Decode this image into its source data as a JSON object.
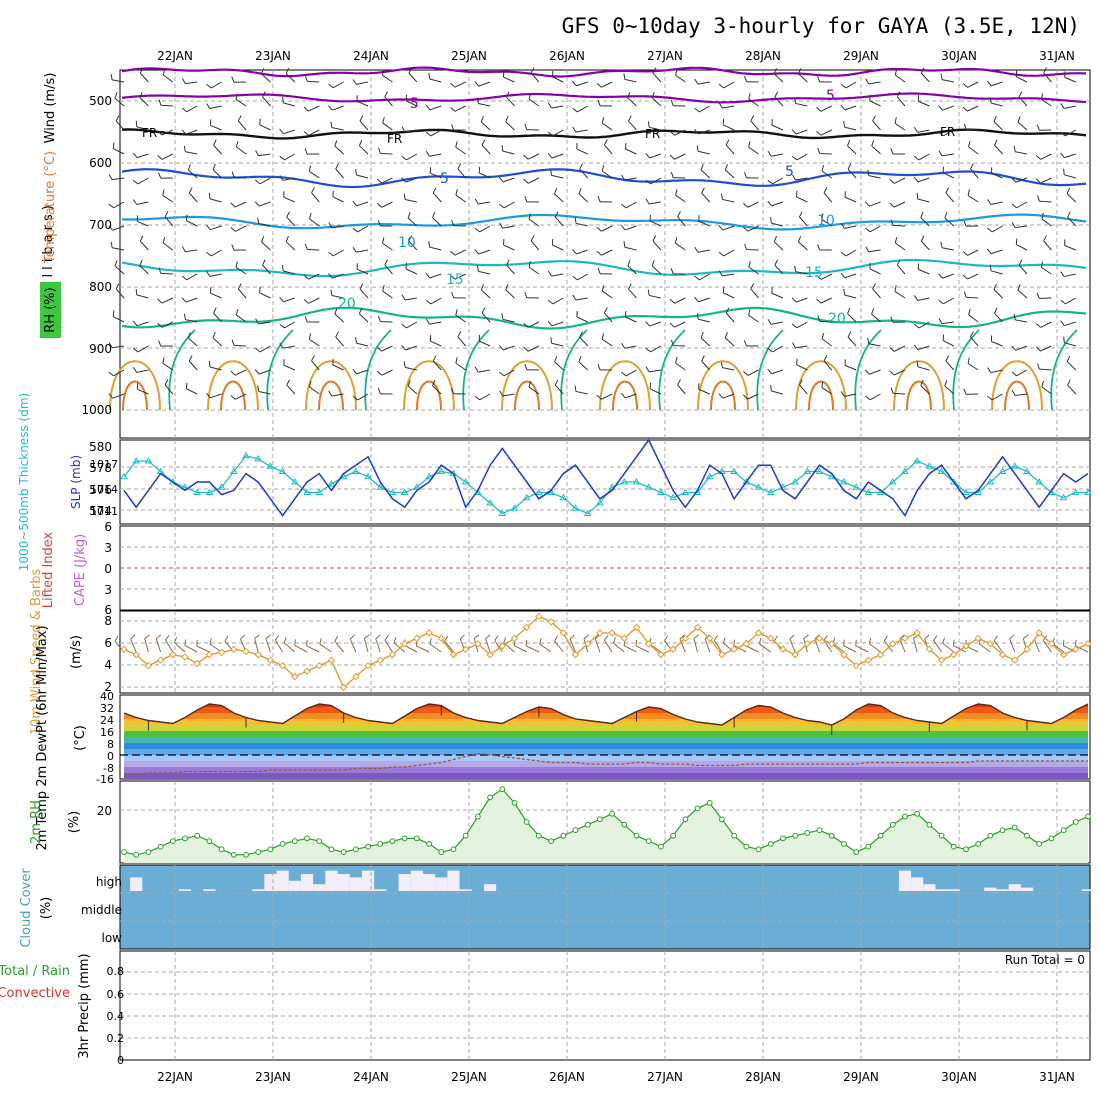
{
  "title": "GFS 0~10day 3-hourly for GAYA (3.5E, 12N)",
  "dates": [
    "22JAN",
    "23JAN",
    "24JAN",
    "25JAN",
    "26JAN",
    "27JAN",
    "28JAN",
    "29JAN",
    "30JAN",
    "31JAN"
  ],
  "colors": {
    "purple": "#8800aa",
    "black": "#111111",
    "blue": "#1c4fd6",
    "lightblue": "#1a9ae0",
    "cyan": "#1cb8c8",
    "green": "#14b48c",
    "orange": "#e0a030",
    "slp": "#1c3ad0",
    "thick": "#20c0c8",
    "wind10": "#e89a30",
    "rh": "#2aa02a",
    "cloud": "#6aaed6",
    "grid": "#aaaaaa"
  },
  "chart_data": [
    {
      "panel": "upper_air",
      "type": "line",
      "labels": {
        "wind": "Wind (m/s)",
        "temperature": "Temperature (°C)",
        "rh": "RH (%)",
        "yaxis": "(millibars)"
      },
      "y_ticks": [
        "500",
        "600",
        "700",
        "800",
        "900",
        "1000"
      ],
      "ylim": [
        450,
        1050
      ],
      "contour_labels": [
        "5",
        "FR",
        "5",
        "10",
        "15",
        "20"
      ]
    },
    {
      "panel": "slp_thickness",
      "type": "line",
      "ylabel_left": "1000~500mb Thickness (dm)",
      "ylabel_right": "SLP (mb)",
      "left_ticks": [
        "580",
        "578",
        "576",
        "574"
      ],
      "right_ticks": [
        "1017",
        "1014",
        "1011"
      ],
      "thickness_ylim": [
        573,
        581
      ],
      "slp_ylim": [
        1009,
        1019
      ],
      "x": [
        0,
        1,
        2,
        3,
        4,
        5,
        6,
        7,
        8,
        9,
        10,
        11,
        12,
        13,
        14,
        15,
        16,
        17,
        18,
        19,
        20,
        21,
        22,
        23,
        24,
        25,
        26,
        27,
        28,
        29,
        30,
        31,
        32,
        33,
        34,
        35,
        36,
        37,
        38,
        39,
        40,
        41,
        42,
        43,
        44,
        45,
        46,
        47,
        48,
        49,
        50,
        51,
        52,
        53,
        54,
        55,
        56,
        57,
        58,
        59,
        60,
        61,
        62,
        63,
        64,
        65,
        66,
        67,
        68,
        69,
        70,
        71,
        72,
        73,
        74,
        75,
        76,
        77,
        78,
        79
      ],
      "series": [
        {
          "key": "thickness",
          "values": [
            577.5,
            579,
            579,
            578,
            577,
            576.5,
            576,
            576,
            576.5,
            578,
            579.5,
            579.2,
            578.5,
            578,
            577,
            576,
            576,
            576.8,
            577.5,
            578,
            577.5,
            576.5,
            576,
            576,
            576.5,
            577.5,
            578,
            577.8,
            577,
            576,
            575,
            574,
            574.5,
            575.5,
            576,
            576,
            575.5,
            574.5,
            574,
            575,
            576.5,
            577,
            577,
            576.5,
            576,
            575.5,
            576,
            576,
            577.5,
            578,
            578,
            577,
            576.5,
            576,
            576.5,
            577,
            578,
            578,
            577.5,
            577,
            576.5,
            576,
            576,
            577,
            578,
            579,
            578.5,
            578,
            577,
            576,
            576,
            577,
            578,
            578.5,
            578,
            577,
            576,
            575.5,
            576,
            576
          ]
        },
        {
          "key": "slp",
          "values": [
            1013,
            1011,
            1013,
            1015,
            1014,
            1013,
            1014,
            1014,
            1012.5,
            1013,
            1015,
            1014,
            1012,
            1010,
            1012,
            1014,
            1015,
            1013,
            1015,
            1016,
            1017,
            1014,
            1012,
            1011,
            1013,
            1014,
            1016,
            1015,
            1011,
            1013,
            1016,
            1018,
            1016,
            1014,
            1012,
            1013,
            1015,
            1016,
            1014,
            1012,
            1013,
            1015,
            1017,
            1019,
            1016,
            1013,
            1011,
            1013,
            1016,
            1015,
            1012,
            1014,
            1016,
            1016,
            1013,
            1012,
            1014,
            1016,
            1015,
            1013,
            1012,
            1014,
            1013,
            1012,
            1010,
            1013,
            1015,
            1016,
            1014,
            1012,
            1013,
            1015,
            1017,
            1015,
            1013,
            1011,
            1013,
            1015,
            1014,
            1015
          ]
        }
      ]
    },
    {
      "panel": "stability",
      "type": "line",
      "ylabel_left": "Lifted Index",
      "ylabel_right": "CAPE (J/kg)",
      "y_ticks": [
        "6",
        "3",
        "0",
        "3",
        "6"
      ],
      "ylim": [
        -6,
        6
      ],
      "lifted_index_zero": 0
    },
    {
      "panel": "wind10m",
      "type": "line",
      "ylabel": "10m Wind Speed & Barbs",
      "yunit": "(m/s)",
      "y_ticks": [
        "8",
        "6",
        "4",
        "2"
      ],
      "ylim": [
        1.5,
        9
      ],
      "x": [
        0,
        1,
        2,
        3,
        4,
        5,
        6,
        7,
        8,
        9,
        10,
        11,
        12,
        13,
        14,
        15,
        16,
        17,
        18,
        19,
        20,
        21,
        22,
        23,
        24,
        25,
        26,
        27,
        28,
        29,
        30,
        31,
        32,
        33,
        34,
        35,
        36,
        37,
        38,
        39,
        40,
        41,
        42,
        43,
        44,
        45,
        46,
        47,
        48,
        49,
        50,
        51,
        52,
        53,
        54,
        55,
        56,
        57,
        58,
        59,
        60,
        61,
        62,
        63,
        64,
        65,
        66,
        67,
        68,
        69,
        70,
        71,
        72,
        73,
        74,
        75,
        76,
        77,
        78,
        79
      ],
      "values": [
        5.5,
        5,
        4,
        4.5,
        5,
        4.8,
        4.2,
        5,
        5.2,
        5.5,
        5.3,
        5,
        4.5,
        4,
        3,
        3.5,
        4,
        4.5,
        2,
        3,
        4,
        4.5,
        5,
        6,
        6.5,
        7,
        6.5,
        5,
        5.5,
        6,
        5,
        5.8,
        6.5,
        7.5,
        8.5,
        8,
        7,
        5,
        6,
        7,
        7,
        6.5,
        7.5,
        6,
        5,
        5.5,
        6.5,
        7.5,
        6.5,
        5,
        5.5,
        6,
        7,
        6.5,
        5.5,
        5,
        6,
        6.5,
        6,
        5,
        4,
        4.5,
        5,
        6,
        6.5,
        7,
        5.5,
        4.5,
        5,
        5.8,
        6.5,
        6,
        5,
        4.5,
        5.5,
        7,
        6,
        5,
        5.5,
        6
      ]
    },
    {
      "panel": "temp2m",
      "type": "area",
      "ylabel": "2m Temp 2m DewPt (6hr Min/Max)",
      "yunit": "(°C)",
      "y_ticks": [
        "40",
        "32",
        "24",
        "16",
        "8",
        "0",
        "-8",
        "-16"
      ],
      "ylim": [
        -16,
        40
      ],
      "x": [
        0,
        1,
        2,
        3,
        4,
        5,
        6,
        7,
        8,
        9,
        10,
        11,
        12,
        13,
        14,
        15,
        16,
        17,
        18,
        19,
        20,
        21,
        22,
        23,
        24,
        25,
        26,
        27,
        28,
        29,
        30,
        31,
        32,
        33,
        34,
        35,
        36,
        37,
        38,
        39,
        40,
        41,
        42,
        43,
        44,
        45,
        46,
        47,
        48,
        49,
        50,
        51,
        52,
        53,
        54,
        55,
        56,
        57,
        58,
        59,
        60,
        61,
        62,
        63,
        64,
        65,
        66,
        67,
        68,
        69,
        70,
        71,
        72,
        73,
        74,
        75,
        76,
        77,
        78,
        79
      ],
      "series": [
        {
          "key": "temp",
          "values": [
            28,
            25,
            23,
            22,
            21,
            25,
            30,
            34,
            33,
            28,
            25,
            23,
            22,
            21,
            26,
            31,
            34,
            33,
            28,
            25,
            23,
            22,
            21,
            26,
            31,
            34,
            33,
            28,
            25,
            23,
            22,
            21,
            25,
            29,
            32,
            31,
            27,
            24,
            23,
            22,
            21,
            25,
            29,
            32,
            31,
            27,
            24,
            22,
            21,
            20,
            25,
            30,
            33,
            32,
            28,
            25,
            23,
            22,
            20,
            24,
            30,
            34,
            33,
            28,
            25,
            23,
            22,
            21,
            26,
            31,
            34,
            33,
            28,
            25,
            23,
            22,
            21,
            25,
            30,
            34
          ]
        },
        {
          "key": "dewpt",
          "values": [
            -13,
            -13,
            -12,
            -12,
            -12,
            -11,
            -11,
            -11,
            -11,
            -11,
            -11,
            -11,
            -10,
            -10,
            -10,
            -10,
            -10,
            -10,
            -10,
            -9,
            -9,
            -9,
            -8,
            -8,
            -7,
            -6,
            -5,
            -3,
            -1,
            1,
            0,
            -1,
            -2,
            -3,
            -4,
            -5,
            -5,
            -5,
            -6,
            -6,
            -6,
            -6,
            -5,
            -5,
            -6,
            -6,
            -6,
            -7,
            -7,
            -7,
            -7,
            -6,
            -6,
            -6,
            -6,
            -6,
            -6,
            -6,
            -6,
            -6,
            -6,
            -5,
            -5,
            -5,
            -5,
            -5,
            -5,
            -5,
            -5,
            -5,
            -4,
            -4,
            -4,
            -4,
            -4,
            -4,
            -4,
            -4,
            -4,
            -4
          ]
        }
      ]
    },
    {
      "panel": "rh2m",
      "type": "area",
      "ylabel": "2m RH",
      "yunit": "(%)",
      "y_ticks": [
        "20"
      ],
      "ylim": [
        0,
        30
      ],
      "x": [
        0,
        1,
        2,
        3,
        4,
        5,
        6,
        7,
        8,
        9,
        10,
        11,
        12,
        13,
        14,
        15,
        16,
        17,
        18,
        19,
        20,
        21,
        22,
        23,
        24,
        25,
        26,
        27,
        28,
        29,
        30,
        31,
        32,
        33,
        34,
        35,
        36,
        37,
        38,
        39,
        40,
        41,
        42,
        43,
        44,
        45,
        46,
        47,
        48,
        49,
        50,
        51,
        52,
        53,
        54,
        55,
        56,
        57,
        58,
        59,
        60,
        61,
        62,
        63,
        64,
        65,
        66,
        67,
        68,
        69,
        70,
        71,
        72,
        73,
        74,
        75,
        76,
        77,
        78,
        79
      ],
      "values": [
        4,
        3,
        4,
        6,
        8,
        9,
        10,
        8,
        5,
        3,
        3,
        4,
        5,
        7,
        8,
        9,
        8,
        5,
        4,
        5,
        6,
        7,
        8,
        9,
        9,
        7,
        4,
        5,
        10,
        17,
        24,
        27,
        22,
        15,
        10,
        8,
        10,
        12,
        14,
        16,
        18,
        14,
        10,
        8,
        6,
        10,
        16,
        20,
        22,
        16,
        10,
        6,
        5,
        7,
        9,
        10,
        11,
        12,
        10,
        7,
        4,
        6,
        10,
        14,
        17,
        18,
        14,
        10,
        6,
        5,
        7,
        10,
        12,
        13,
        10,
        7,
        9,
        12,
        15,
        17
      ]
    },
    {
      "panel": "cloud_cover",
      "type": "bar",
      "ylabel": "Cloud Cover",
      "yunit": "(%)",
      "levels": [
        "high",
        "middle",
        "low"
      ],
      "high_cover": [
        0,
        8,
        0,
        0,
        0,
        1,
        0,
        1,
        0,
        0,
        0,
        1,
        10,
        12,
        6,
        10,
        4,
        12,
        10,
        8,
        12,
        1,
        0,
        10,
        12,
        10,
        8,
        12,
        1,
        0,
        4,
        0,
        0,
        0,
        0,
        0,
        0,
        0,
        0,
        0,
        0,
        0,
        0,
        0,
        0,
        0,
        0,
        0,
        0,
        0,
        0,
        0,
        0,
        0,
        0,
        0,
        0,
        0,
        0,
        0,
        0,
        0,
        0,
        0,
        12,
        8,
        4,
        1,
        1,
        0,
        0,
        2,
        1,
        4,
        2,
        0,
        0,
        0,
        0,
        1
      ]
    },
    {
      "panel": "precip",
      "type": "bar",
      "ylabel_left": "3hr Precip (mm)",
      "ylabel_total": "Total / Rain",
      "ylabel_conv": "Convective",
      "y_ticks": [
        "0.8",
        "0.6",
        "0.4",
        "0.2",
        "0"
      ],
      "ylim": [
        0,
        0.9
      ],
      "run_total": "Run Total = 0",
      "values": []
    }
  ]
}
